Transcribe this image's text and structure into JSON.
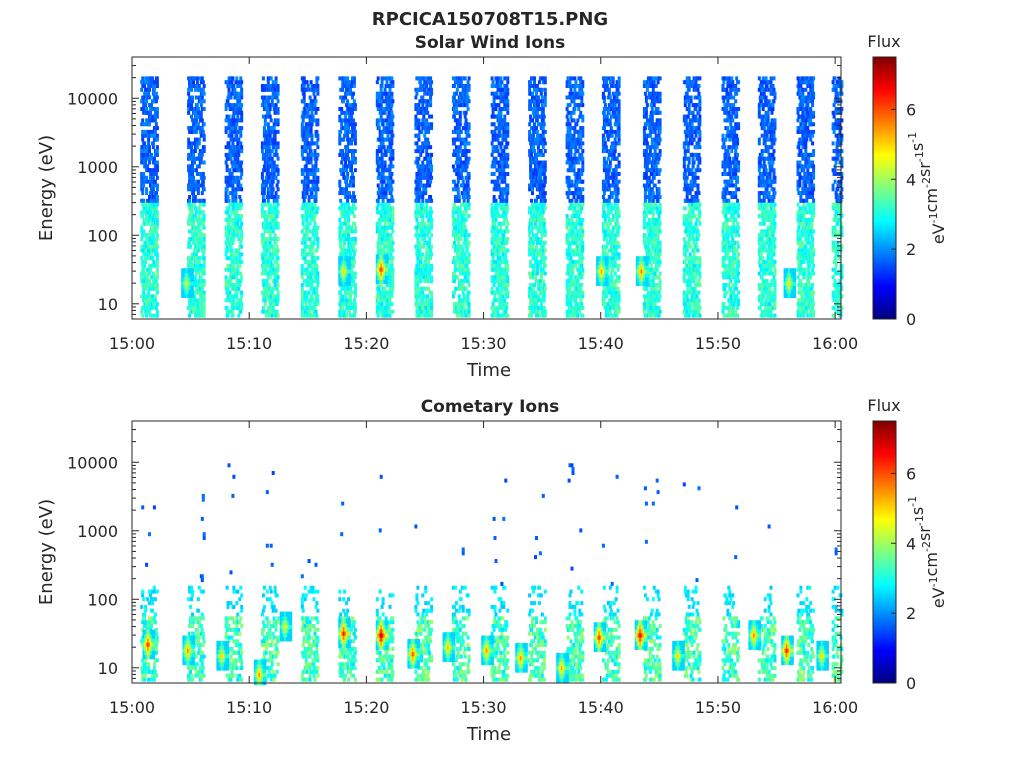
{
  "figure": {
    "title": "RPCICA150708T15.PNG"
  },
  "colorscale": {
    "colors": [
      "#00007f",
      "#0000ff",
      "#007fff",
      "#00ffff",
      "#7fff7f",
      "#ffff00",
      "#ff7f00",
      "#ff0000",
      "#7f0000"
    ]
  },
  "chart_data": [
    {
      "type": "heatmap",
      "title": "Solar Wind Ions",
      "xlabel": "Time",
      "ylabel": "Energy (eV)",
      "x_ticks": [
        "15:00",
        "15:10",
        "15:20",
        "15:30",
        "15:40",
        "15:50",
        "16:00"
      ],
      "xlim_minutes": [
        0,
        60.5
      ],
      "y_scale": "log",
      "y_ticks": [
        10,
        100,
        1000,
        10000
      ],
      "y_tick_labels": [
        "10",
        "100",
        "1000",
        "10000"
      ],
      "ylim": [
        6,
        40000
      ],
      "colorbar": {
        "label": "Flux",
        "unit": "eV-1cm-2sr-1s-1",
        "ticks": [
          0,
          2,
          4,
          6
        ],
        "range": [
          0,
          7.5
        ]
      },
      "pattern": "periodic vertical sweeps every ~3.3 min from ~6 eV to ~20000 eV; blue (~1.5) at high energies, cyan-green (~3) below 300 eV; hot spots at ~20-40 eV",
      "sweep_starts_minutes": [
        0.9,
        4.9,
        8.1,
        11.2,
        14.6,
        17.8,
        21.0,
        24.3,
        27.5,
        30.8,
        34.0,
        37.2,
        40.3,
        43.8,
        47.2,
        50.5,
        53.6,
        56.9,
        59.9
      ],
      "hotspots": [
        {
          "t": 21.2,
          "energy": 32,
          "flux": 6.3
        },
        {
          "t": 40.0,
          "energy": 30,
          "flux": 5.4
        },
        {
          "t": 43.4,
          "energy": 30,
          "flux": 5.7
        },
        {
          "t": 18.0,
          "energy": 30,
          "flux": 5.0
        },
        {
          "t": 56.0,
          "energy": 20,
          "flux": 4.9
        },
        {
          "t": 4.6,
          "energy": 20,
          "flux": 4.6
        }
      ]
    },
    {
      "type": "heatmap",
      "title": "Cometary Ions",
      "xlabel": "Time",
      "ylabel": "Energy (eV)",
      "x_ticks": [
        "15:00",
        "15:10",
        "15:20",
        "15:30",
        "15:40",
        "15:50",
        "16:00"
      ],
      "xlim_minutes": [
        0,
        60.5
      ],
      "y_scale": "log",
      "y_ticks": [
        10,
        100,
        1000,
        10000
      ],
      "y_tick_labels": [
        "10",
        "100",
        "1000",
        "10000"
      ],
      "ylim": [
        6,
        40000
      ],
      "colorbar": {
        "label": "Flux",
        "unit": "eV-1cm-2sr-1s-1",
        "ticks": [
          0,
          2,
          4,
          6
        ],
        "range": [
          0,
          7.5
        ]
      },
      "pattern": "intense low-energy bursts (~10-40 eV) each sweep; sparse cyan speckle up to ~150 eV; scattered blue pixels up to ~9000 eV",
      "sweep_starts_minutes": [
        0.9,
        4.9,
        8.1,
        11.2,
        14.6,
        17.8,
        21.0,
        24.3,
        27.5,
        30.8,
        34.0,
        37.2,
        40.3,
        43.8,
        47.2,
        50.5,
        53.6,
        56.9,
        59.9
      ],
      "hotspots": [
        {
          "t": 1.3,
          "energy": 22,
          "flux": 6.3
        },
        {
          "t": 4.7,
          "energy": 18,
          "flux": 5.6
        },
        {
          "t": 7.6,
          "energy": 15,
          "flux": 5.0
        },
        {
          "t": 10.8,
          "energy": 8,
          "flux": 5.5
        },
        {
          "t": 13.0,
          "energy": 40,
          "flux": 4.8
        },
        {
          "t": 18.0,
          "energy": 32,
          "flux": 6.5
        },
        {
          "t": 21.2,
          "energy": 30,
          "flux": 7.2
        },
        {
          "t": 23.9,
          "energy": 16,
          "flux": 6.0
        },
        {
          "t": 26.9,
          "energy": 20,
          "flux": 5.3
        },
        {
          "t": 30.2,
          "energy": 18,
          "flux": 5.6
        },
        {
          "t": 33.1,
          "energy": 14,
          "flux": 5.6
        },
        {
          "t": 36.6,
          "energy": 10,
          "flux": 5.4
        },
        {
          "t": 39.8,
          "energy": 28,
          "flux": 6.3
        },
        {
          "t": 43.3,
          "energy": 30,
          "flux": 6.9
        },
        {
          "t": 46.5,
          "energy": 15,
          "flux": 5.0
        },
        {
          "t": 53.0,
          "energy": 30,
          "flux": 5.6
        },
        {
          "t": 55.8,
          "energy": 18,
          "flux": 6.5
        },
        {
          "t": 58.8,
          "energy": 15,
          "flux": 5.0
        }
      ]
    }
  ]
}
